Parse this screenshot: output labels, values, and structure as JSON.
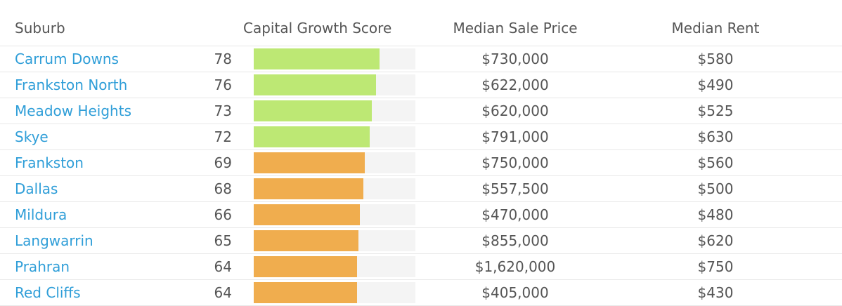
{
  "colors": {
    "high": "#bde874",
    "medium": "#f0ad4e",
    "track": "#f4f4f4",
    "link": "#2f9ed8"
  },
  "headers": {
    "suburb": "Suburb",
    "score": "Capital Growth Score",
    "price": "Median Sale Price",
    "rent": "Median Rent"
  },
  "rows": [
    {
      "suburb": "Carrum Downs",
      "score": "78",
      "price": "$730,000",
      "rent": "$580",
      "level": "high"
    },
    {
      "suburb": "Frankston North",
      "score": "76",
      "price": "$622,000",
      "rent": "$490",
      "level": "high"
    },
    {
      "suburb": "Meadow Heights",
      "score": "73",
      "price": "$620,000",
      "rent": "$525",
      "level": "high"
    },
    {
      "suburb": "Skye",
      "score": "72",
      "price": "$791,000",
      "rent": "$630",
      "level": "high"
    },
    {
      "suburb": "Frankston",
      "score": "69",
      "price": "$750,000",
      "rent": "$560",
      "level": "medium"
    },
    {
      "suburb": "Dallas",
      "score": "68",
      "price": "$557,500",
      "rent": "$500",
      "level": "medium"
    },
    {
      "suburb": "Mildura",
      "score": "66",
      "price": "$470,000",
      "rent": "$480",
      "level": "medium"
    },
    {
      "suburb": "Langwarrin",
      "score": "65",
      "price": "$855,000",
      "rent": "$620",
      "level": "medium"
    },
    {
      "suburb": "Prahran",
      "score": "64",
      "price": "$1,620,000",
      "rent": "$750",
      "level": "medium"
    },
    {
      "suburb": "Red Cliffs",
      "score": "64",
      "price": "$405,000",
      "rent": "$430",
      "level": "medium"
    }
  ]
}
